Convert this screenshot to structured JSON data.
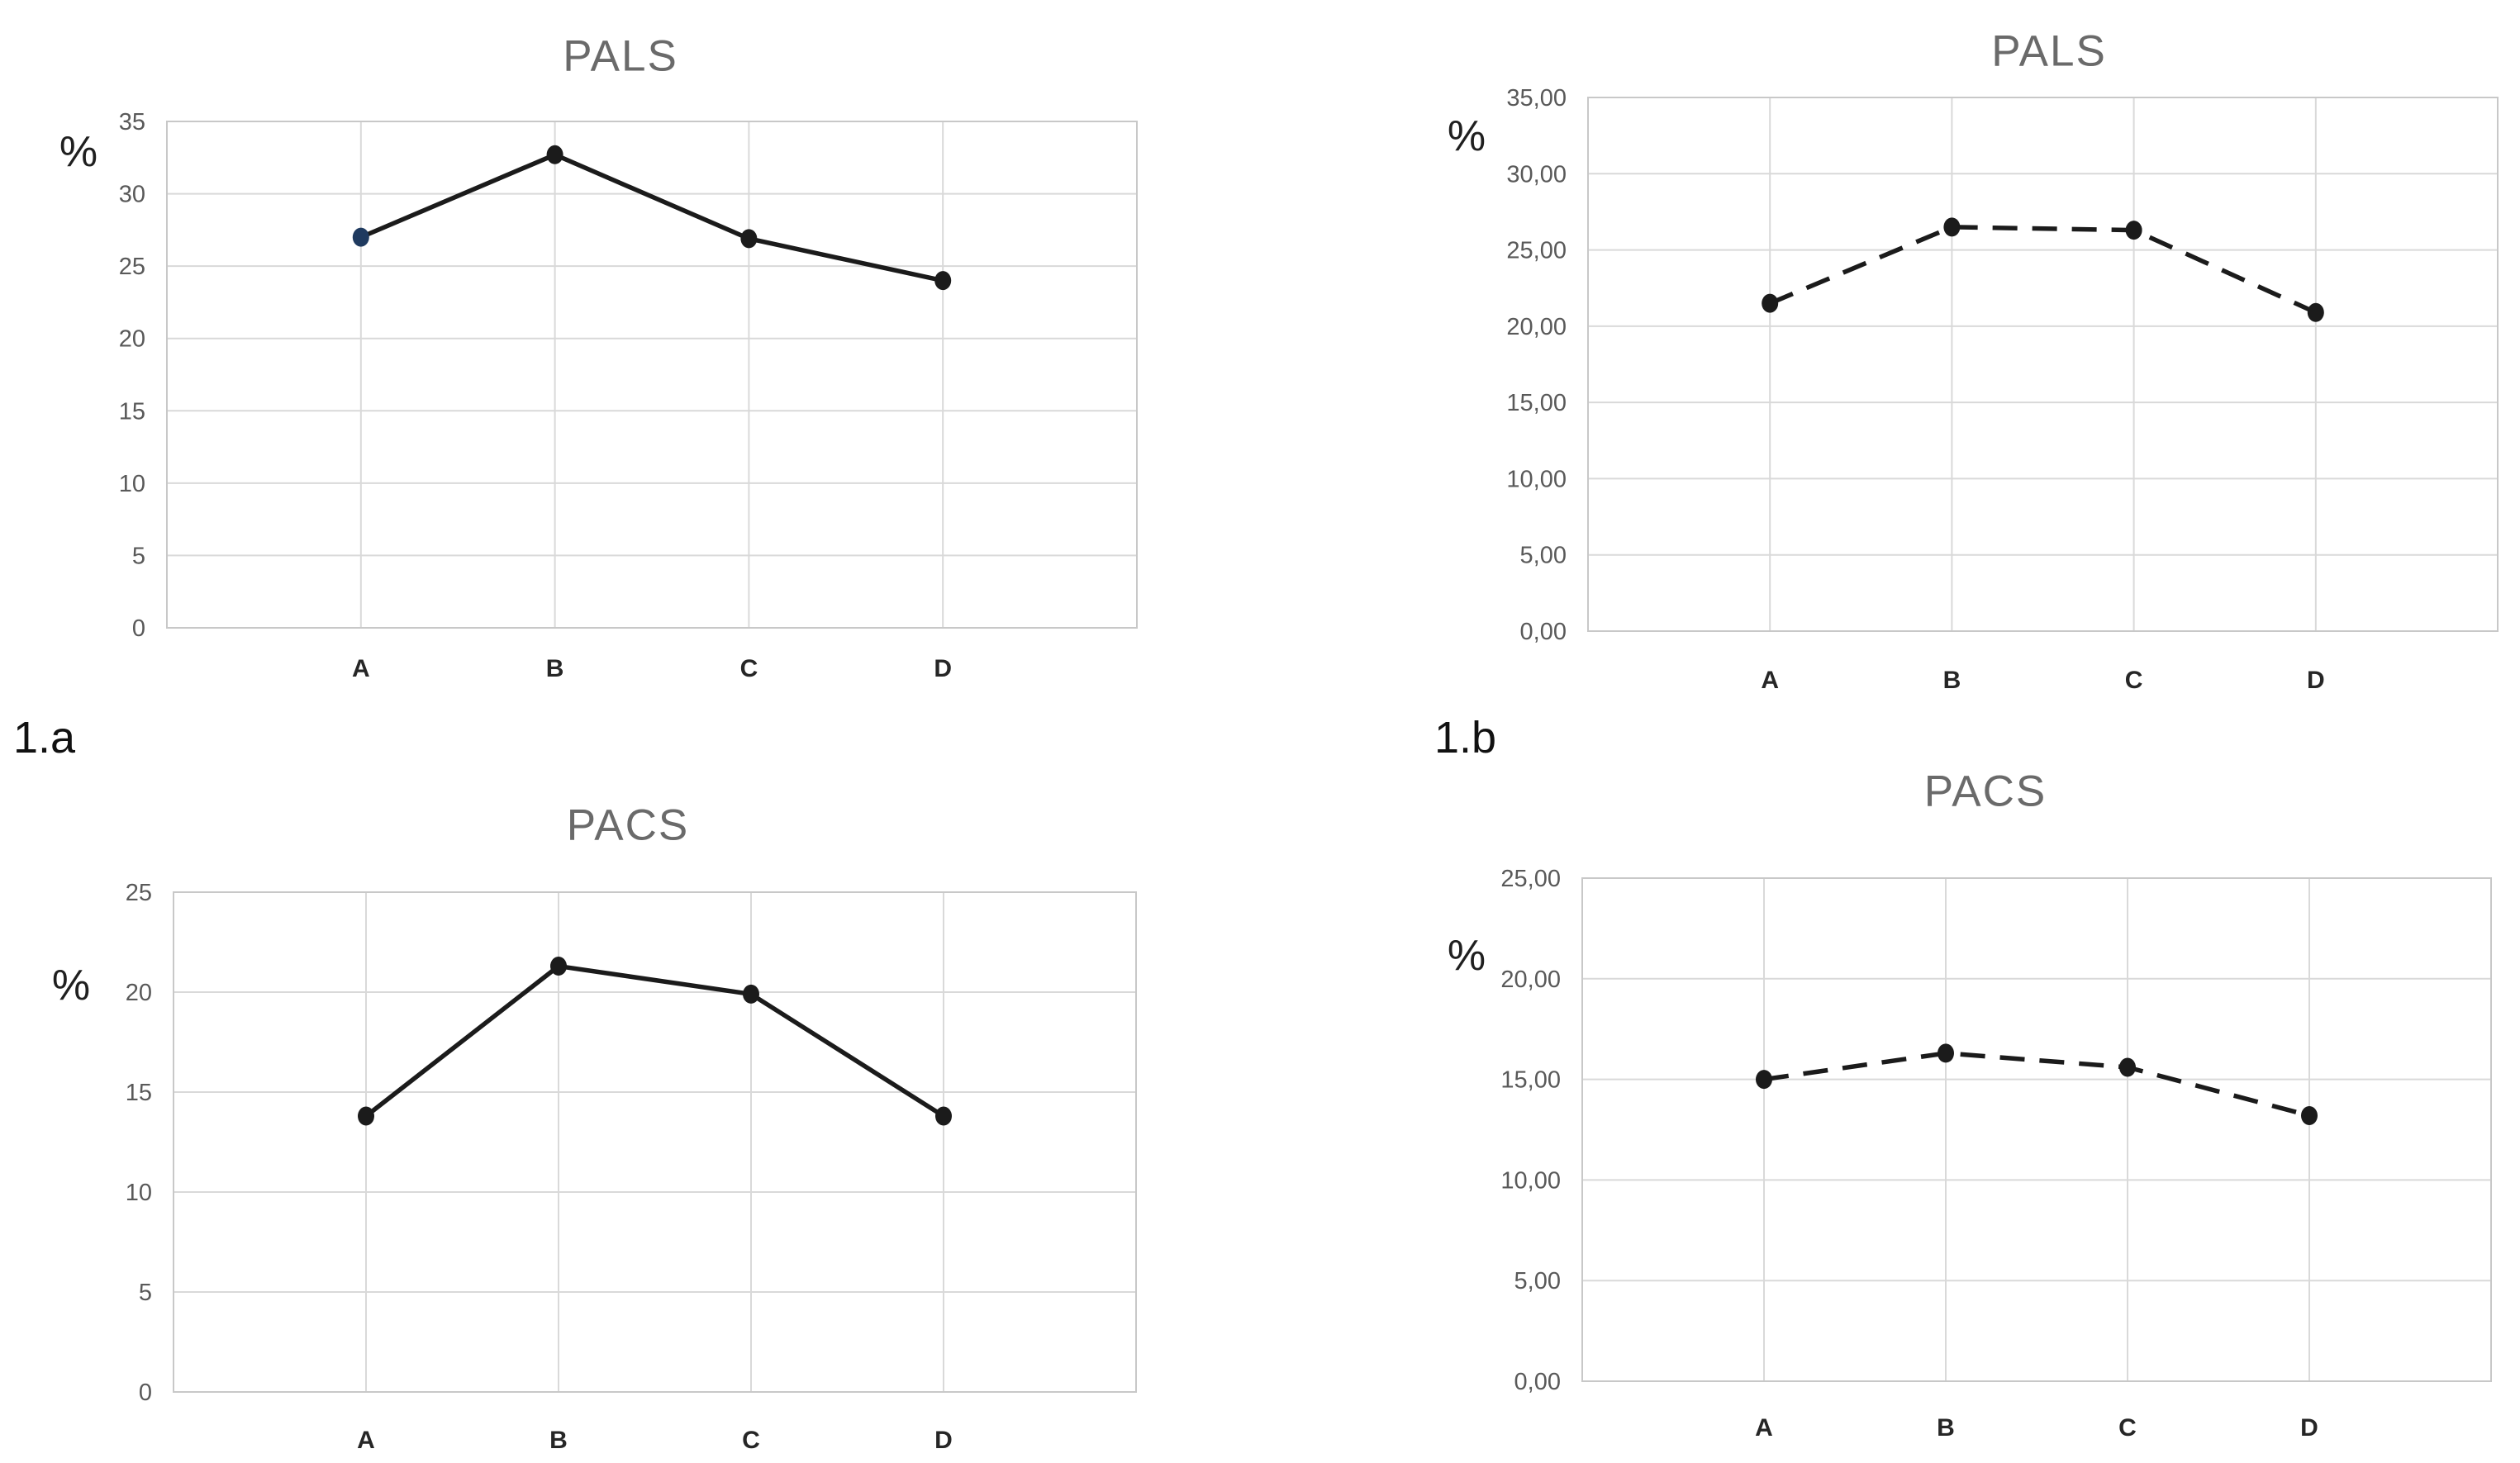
{
  "figure_labels": [
    {
      "label": "1.a"
    },
    {
      "label": "1.b"
    }
  ],
  "colors": {
    "background": "#ffffff",
    "grid": "#d9d9d9",
    "plot_border": "#c8c8c8",
    "title": "#6a6a6a",
    "tick": "#595959",
    "category": "#262626",
    "line": "#1b1b1b",
    "marker": "#1b1b1b",
    "marker_accent": "#1f3a5f",
    "unit_text": "#1f1f1f"
  },
  "chart_data": [
    {
      "id": "pals-solid-1a",
      "type": "line",
      "title": "PALS",
      "ylabel": "%",
      "xlabel": "",
      "categories": [
        "A",
        "B",
        "C",
        "D"
      ],
      "values": [
        27.0,
        32.7,
        26.9,
        24.0
      ],
      "ylim": [
        0,
        35
      ],
      "ytick_step": 5,
      "ytick_labels": [
        "35",
        "30",
        "25",
        "20",
        "15",
        "10",
        "5",
        "0"
      ],
      "grid": true,
      "legend": false,
      "line_style": "solid",
      "marker": "circle",
      "marker_colors": [
        "#1f3a5f",
        "#1b1b1b",
        "#1b1b1b",
        "#1b1b1b"
      ]
    },
    {
      "id": "pals-dashed-1b",
      "type": "line",
      "title": "PALS",
      "ylabel": "%",
      "xlabel": "",
      "categories": [
        "A",
        "B",
        "C",
        "D"
      ],
      "values": [
        21.5,
        26.5,
        26.3,
        20.9
      ],
      "ylim": [
        0,
        35
      ],
      "ytick_step": 5,
      "ytick_labels": [
        "35,00",
        "30,00",
        "25,00",
        "20,00",
        "15,00",
        "10,00",
        "5,00",
        "0,00"
      ],
      "grid": true,
      "legend": false,
      "line_style": "dashed",
      "marker": "circle",
      "marker_colors": [
        "#1b1b1b",
        "#1b1b1b",
        "#1b1b1b",
        "#1b1b1b"
      ]
    },
    {
      "id": "pacs-solid-1a",
      "type": "line",
      "title": "PACS",
      "ylabel": "%",
      "xlabel": "",
      "categories": [
        "A",
        "B",
        "C",
        "D"
      ],
      "values": [
        13.8,
        21.3,
        19.9,
        13.8
      ],
      "ylim": [
        0,
        25
      ],
      "ytick_step": 5,
      "ytick_labels": [
        "25",
        "20",
        "15",
        "10",
        "5",
        "0"
      ],
      "grid": true,
      "legend": false,
      "line_style": "solid",
      "marker": "circle",
      "marker_colors": [
        "#1b1b1b",
        "#1b1b1b",
        "#1b1b1b",
        "#1b1b1b"
      ]
    },
    {
      "id": "pacs-dashed-1b",
      "type": "line",
      "title": "PACS",
      "ylabel": "%",
      "xlabel": "",
      "categories": [
        "A",
        "B",
        "C",
        "D"
      ],
      "values": [
        15.0,
        16.3,
        15.6,
        13.2
      ],
      "ylim": [
        0,
        25
      ],
      "ytick_step": 5,
      "ytick_labels": [
        "25,00",
        "20,00",
        "15,00",
        "10,00",
        "5,00",
        "0,00"
      ],
      "grid": true,
      "legend": false,
      "line_style": "dashed",
      "marker": "circle",
      "marker_colors": [
        "#1b1b1b",
        "#1b1b1b",
        "#1b1b1b",
        "#1b1b1b"
      ]
    }
  ]
}
